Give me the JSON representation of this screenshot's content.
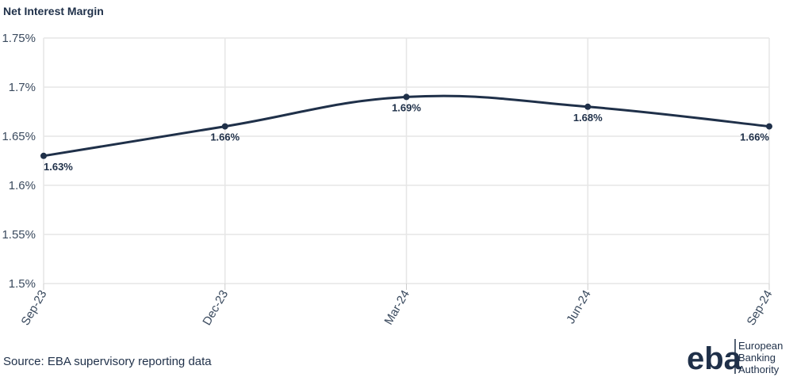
{
  "chart_data": {
    "type": "line",
    "title": "Net Interest Margin",
    "categories": [
      "Sep-23",
      "Dec-23",
      "Mar-24",
      "Jun-24",
      "Sep-24"
    ],
    "series": [
      {
        "values": [
          1.63,
          1.66,
          1.69,
          1.68,
          1.66
        ],
        "color": "#1f3049"
      }
    ],
    "data_labels": [
      "1.63%",
      "1.66%",
      "1.69%",
      "1.68%",
      "1.66%"
    ],
    "ylim": [
      1.5,
      1.75
    ],
    "yticks": [
      1.5,
      1.55,
      1.6,
      1.65,
      1.7,
      1.75
    ],
    "ytick_labels": [
      "1.5%",
      "1.55%",
      "1.6%",
      "1.65%",
      "1.7%",
      "1.75%"
    ],
    "grid": true,
    "xlabel": "",
    "ylabel": ""
  },
  "footer": {
    "source": "Source: EBA supervisory reporting data",
    "logo": {
      "mark": "eba",
      "lines": [
        "European",
        "Banking",
        "Authority"
      ]
    }
  },
  "colors": {
    "line": "#1f3049",
    "grid": "#e6e6e6",
    "axis": "#cccccc"
  }
}
